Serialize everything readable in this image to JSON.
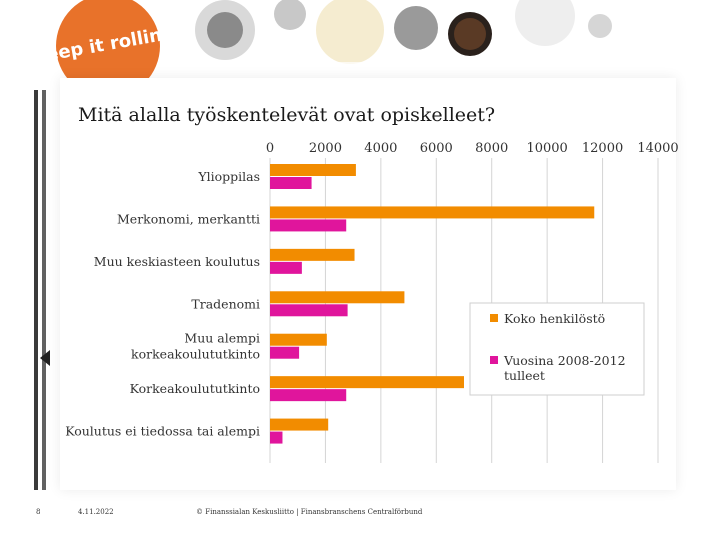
{
  "slide": {
    "title": "Mitä alalla työskentelevät ovat opiskelleet?",
    "logo_text": "Keep it rolling!",
    "footer": {
      "page_number": "8",
      "date": "4.11.2022",
      "copyright": "© Finanssialan Keskusliitto | Finansbranschens Centralförbund"
    }
  },
  "colors": {
    "series_total": "#f28c00",
    "series_new": "#e0159c",
    "logo_circle": "#e8722a",
    "gridline": "#d4d4d4"
  },
  "chart_data": {
    "type": "bar",
    "orientation": "horizontal",
    "title": "Mitä alalla työskentelevät ovat opiskelleet?",
    "xlabel": "",
    "ylabel": "",
    "xlim": [
      0,
      14000
    ],
    "ticks": [
      0,
      2000,
      4000,
      6000,
      8000,
      10000,
      12000,
      14000
    ],
    "tick_labels": [
      "0",
      "2000",
      "4000",
      "6000",
      "8000",
      "10000",
      "12000",
      "14000"
    ],
    "x_axis_position": "top",
    "grid": true,
    "legend_position": "right",
    "categories": [
      {
        "label": "Ylioppilas",
        "lines": [
          "Ylioppilas"
        ]
      },
      {
        "label": "Merkonomi, merkantti",
        "lines": [
          "Merkonomi, merkantti"
        ]
      },
      {
        "label": "Muu keskiasteen koulutus",
        "lines": [
          "Muu keskiasteen koulutus"
        ]
      },
      {
        "label": "Tradenomi",
        "lines": [
          "Tradenomi"
        ]
      },
      {
        "label": "Muu alempi korkeakoulututkinto",
        "lines": [
          "Muu alempi",
          "korkeakoulututkinto"
        ]
      },
      {
        "label": "Korkeakoulututkinto",
        "lines": [
          "Korkeakoulututkinto"
        ]
      },
      {
        "label": "Koulutus ei tiedossa tai alempi",
        "lines": [
          "Koulutus ei tiedossa tai alempi"
        ]
      }
    ],
    "series": [
      {
        "name": "Koko henkilöstö",
        "lines": [
          "Koko henkilöstö"
        ],
        "color": "#f28c00",
        "values": [
          3100,
          11700,
          3050,
          4850,
          2050,
          7000,
          2100
        ]
      },
      {
        "name": "Vuosina 2008-2012 tulleet",
        "lines": [
          "Vuosina 2008-2012",
          "tulleet"
        ],
        "color": "#e0159c",
        "values": [
          1500,
          2750,
          1150,
          2800,
          1050,
          2750,
          450
        ]
      }
    ]
  }
}
